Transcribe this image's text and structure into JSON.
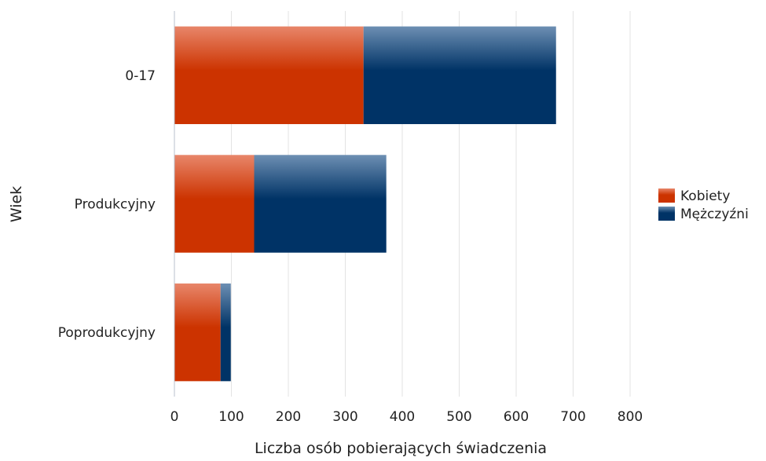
{
  "chart_data": {
    "type": "bar",
    "orientation": "horizontal",
    "stacked": true,
    "title": "",
    "xlabel": "Liczba osób pobierających świadczenia",
    "ylabel": "Wiek",
    "categories": [
      "0-17",
      "Produkcyjny",
      "Poprodukcyjny"
    ],
    "series": [
      {
        "name": "Kobiety",
        "values": [
          332,
          140,
          81
        ],
        "color": "#cc3300"
      },
      {
        "name": "Mężczyźni",
        "values": [
          338,
          232,
          18
        ],
        "color": "#003366"
      }
    ],
    "xlim": [
      0,
      800
    ],
    "xticks": [
      0,
      100,
      200,
      300,
      400,
      500,
      600,
      700,
      800
    ],
    "grid": true,
    "legend_position": "right"
  }
}
